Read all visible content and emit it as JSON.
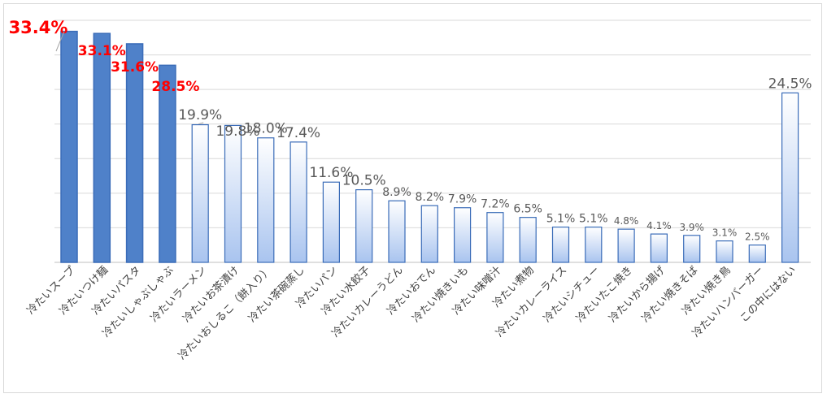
{
  "chart_data": {
    "type": "bar",
    "categories": [
      "冷たいスープ",
      "冷たいつけ麺",
      "冷たいパスタ",
      "冷たいしゃぶしゃぶ",
      "冷たいラーメン",
      "冷たいお茶漬け",
      "冷たいおしるこ（餅入り）",
      "冷たい茶碗蒸し",
      "冷たいパン",
      "冷たい水餃子",
      "冷たいカレーうどん",
      "冷たいおでん",
      "冷たい焼きいも",
      "冷たい味噌汁",
      "冷たい煮物",
      "冷たいカレーライス",
      "冷たいシチュー",
      "冷たいたこ焼き",
      "冷たいから揚げ",
      "冷たい焼きそば",
      "冷たい焼き鳥",
      "冷たいハンバーガー",
      "この中にはない"
    ],
    "values": [
      33.4,
      33.1,
      31.6,
      28.5,
      19.9,
      19.8,
      18.0,
      17.4,
      11.6,
      10.5,
      8.9,
      8.2,
      7.9,
      7.2,
      6.5,
      5.1,
      5.1,
      4.8,
      4.1,
      3.9,
      3.1,
      2.5,
      24.5
    ],
    "value_labels": [
      "33.4%",
      "33.1%",
      "31.6%",
      "28.5%",
      "19.9%",
      "19.8%",
      "18.0%",
      "17.4%",
      "11.6%",
      "10.5%",
      "8.9%",
      "8.2%",
      "7.9%",
      "7.2%",
      "6.5%",
      "5.1%",
      "5.1%",
      "4.8%",
      "4.1%",
      "3.9%",
      "3.1%",
      "2.5%",
      "24.5%"
    ],
    "highlight_count": 4,
    "ylim": [
      0,
      35
    ],
    "grid": true,
    "title": "",
    "xlabel": "",
    "ylabel": "",
    "colors": {
      "highlight_bar": "#4f81c9",
      "highlight_label": "#ff0000",
      "normal_bar_top": "#ffffff",
      "normal_bar_bottom": "#a9c4ef",
      "bar_border": "#3a6cb8",
      "label": "#595959"
    }
  }
}
